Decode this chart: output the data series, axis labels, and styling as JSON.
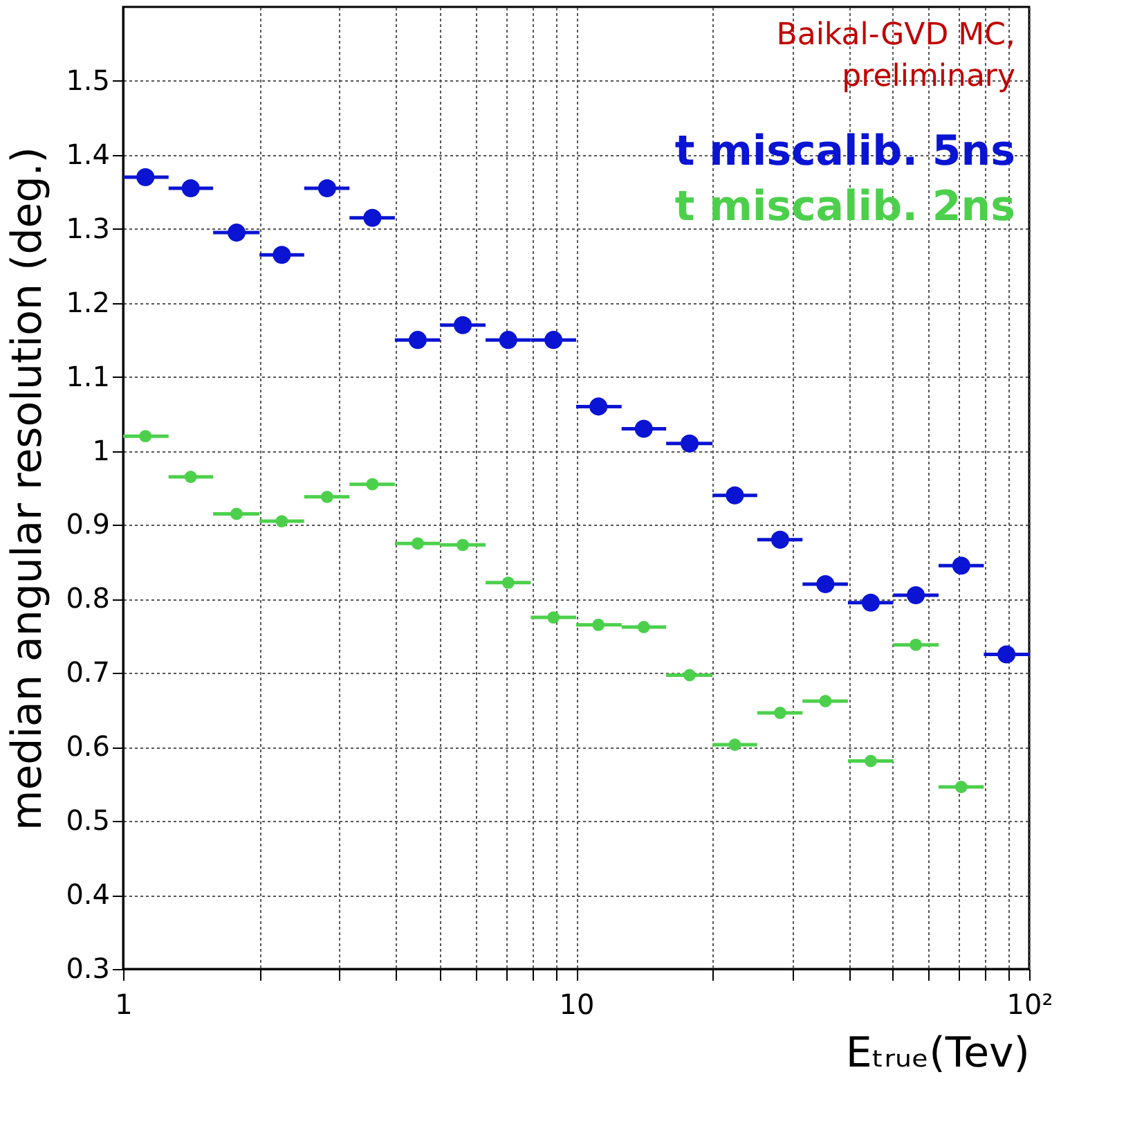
{
  "chart_data": {
    "type": "scatter",
    "ylabel": "median angular resolution (deg.)",
    "xlabel": "Eₜᵣᵤₑ(Tev)",
    "annotations": [
      "Baikal-GVD MC,\npreliminary"
    ],
    "x": [
      1.12,
      1.41,
      1.78,
      2.24,
      2.82,
      3.55,
      4.47,
      5.62,
      7.08,
      8.91,
      11.2,
      14.1,
      17.8,
      22.4,
      28.2,
      35.5,
      44.7,
      56.2,
      70.8,
      89.1
    ],
    "series": [
      {
        "name": "t miscalib. 5ns",
        "color": "#0a14d2",
        "values": [
          1.37,
          1.355,
          1.295,
          1.265,
          1.355,
          1.315,
          1.15,
          1.17,
          1.15,
          1.15,
          1.06,
          1.03,
          1.01,
          0.94,
          0.88,
          0.82,
          0.795,
          0.805,
          0.845,
          0.725
        ],
        "xerrors": [
          [
            1,
            1.26
          ],
          [
            1.26,
            1.58
          ],
          [
            1.58,
            2.0
          ],
          [
            2.0,
            2.51
          ],
          [
            2.51,
            3.16
          ],
          [
            3.16,
            3.98
          ],
          [
            3.98,
            5.01
          ],
          [
            5.01,
            6.31
          ],
          [
            6.31,
            7.94
          ],
          [
            7.94,
            10
          ],
          [
            10,
            12.6
          ],
          [
            12.6,
            15.8
          ],
          [
            15.8,
            20.0
          ],
          [
            20.0,
            25.1
          ],
          [
            25.1,
            31.6
          ],
          [
            31.6,
            39.8
          ],
          [
            39.8,
            50.1
          ],
          [
            50.1,
            63.1
          ],
          [
            63.1,
            79.4
          ],
          [
            79.4,
            100
          ]
        ]
      },
      {
        "name": "t miscalib. 2ns",
        "color": "#4cd04c",
        "values": [
          1.02,
          0.965,
          0.915,
          0.905,
          0.938,
          0.955,
          0.875,
          0.873,
          0.822,
          0.775,
          0.765,
          0.762,
          0.697,
          0.603,
          0.646,
          0.662,
          0.581,
          0.738,
          0.546,
          null
        ],
        "xerrors": [
          [
            1,
            1.26
          ],
          [
            1.26,
            1.58
          ],
          [
            1.58,
            2.0
          ],
          [
            2.0,
            2.51
          ],
          [
            2.51,
            3.16
          ],
          [
            3.16,
            3.98
          ],
          [
            3.98,
            5.01
          ],
          [
            5.01,
            6.31
          ],
          [
            6.31,
            7.94
          ],
          [
            7.94,
            10
          ],
          [
            10,
            12.6
          ],
          [
            12.6,
            15.8
          ],
          [
            15.8,
            20.0
          ],
          [
            20.0,
            25.1
          ],
          [
            25.1,
            31.6
          ],
          [
            31.6,
            39.8
          ],
          [
            39.8,
            50.1
          ],
          [
            50.1,
            63.1
          ],
          [
            63.1,
            79.4
          ],
          null
        ]
      }
    ],
    "log": "x",
    "xlim": [
      1,
      100
    ],
    "xticks": [
      1,
      {
        "value": 2,
        "label": null
      },
      {
        "value": 3,
        "label": null
      },
      {
        "value": 4,
        "label": null
      },
      {
        "value": 5,
        "label": null
      },
      {
        "value": 6,
        "label": null
      },
      {
        "value": 7,
        "label": null
      },
      {
        "value": 8,
        "label": null
      },
      {
        "value": 9,
        "label": null
      },
      10,
      {
        "value": 20,
        "label": null
      },
      {
        "value": 30,
        "label": null
      },
      {
        "value": 40,
        "label": null
      },
      {
        "value": 50,
        "label": null
      },
      {
        "value": 60,
        "label": null
      },
      {
        "value": 70,
        "label": null
      },
      {
        "value": 80,
        "label": null
      },
      {
        "value": 90,
        "label": null
      },
      {
        "value": 100,
        "label": "10²"
      }
    ],
    "ylim": [
      0.3,
      1.6
    ],
    "yticks": [
      0.3,
      0.4,
      0.5,
      0.6,
      0.7,
      0.8,
      0.9,
      1,
      1.1,
      1.2,
      1.3,
      1.4,
      1.5
    ],
    "grid": true,
    "legend": "top right",
    "marker": "circle"
  }
}
